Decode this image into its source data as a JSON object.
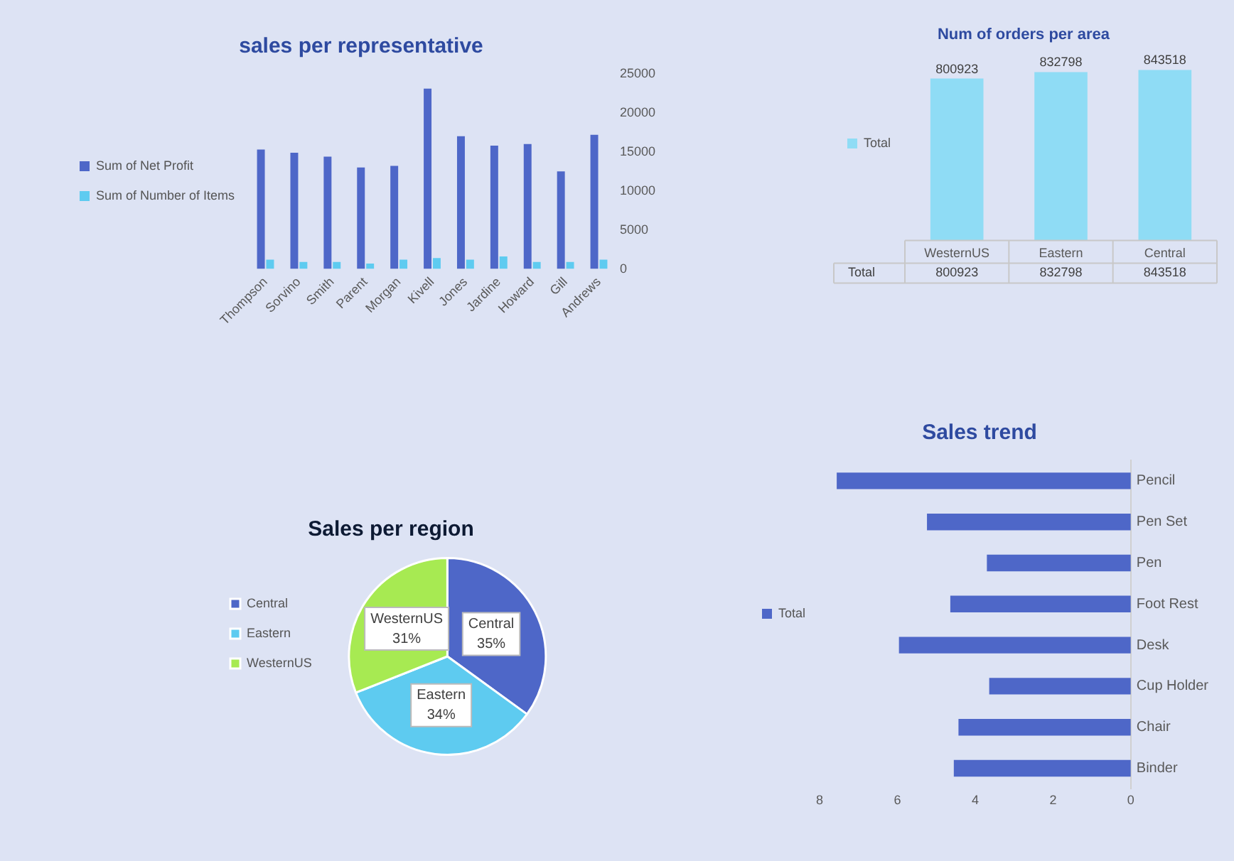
{
  "chart_data": [
    {
      "type": "bar",
      "title": "sales per representative",
      "categories": [
        "Thompson",
        "Sorvino",
        "Smith",
        "Parent",
        "Morgan",
        "Kivell",
        "Jones",
        "Jardine",
        "Howard",
        "Gill",
        "Andrews"
      ],
      "series": [
        {
          "name": "Sum of Net Profit",
          "color": "#4e67c8",
          "values": [
            15300,
            14900,
            14400,
            13000,
            13200,
            23100,
            17000,
            15800,
            16000,
            12500,
            17200
          ]
        },
        {
          "name": "Sum of Number of Items",
          "color": "#5ecbf0",
          "values": [
            1200,
            900,
            900,
            700,
            1200,
            1400,
            1200,
            1600,
            900,
            900,
            1200
          ]
        }
      ],
      "ylim": [
        0,
        25000
      ],
      "yticks": [
        0,
        5000,
        10000,
        15000,
        20000,
        25000
      ],
      "grid": false,
      "legend": "left"
    },
    {
      "type": "bar",
      "title": "Num of orders per area",
      "categories": [
        "WesternUS",
        "Eastern",
        "Central"
      ],
      "series": [
        {
          "name": "Total",
          "color": "#8fdcf5",
          "values": [
            800923,
            832798,
            843518
          ],
          "value_labels": [
            "800923",
            "832798",
            "843518"
          ]
        }
      ],
      "data_labels": true,
      "tick_labels": "x",
      "legend": "left",
      "annotations": [
        "800923",
        "832798",
        "843518"
      ]
    },
    {
      "type": "pie",
      "title": "Sales per region",
      "categories": [
        "Central",
        "Eastern",
        "WesternUS"
      ],
      "values": [
        35,
        34,
        31
      ],
      "colors": [
        "#4e67c8",
        "#5ecbf0",
        "#a7ea52"
      ],
      "value_labels": [
        "35%",
        "34%",
        "31%"
      ],
      "legend": "left"
    },
    {
      "type": "bar",
      "orientation": "horizontal",
      "title": "Sales trend",
      "categories": [
        "Pencil",
        "Pen Set",
        "Pen",
        "Foot Rest",
        "Desk",
        "Cup Holder",
        "Chair",
        "Binder"
      ],
      "series": [
        {
          "name": "Total",
          "color": "#4e67c8",
          "values": [
            7.56,
            5.24,
            3.7,
            4.64,
            5.96,
            3.64,
            4.43,
            4.55
          ]
        }
      ],
      "xlim": [
        8,
        0
      ],
      "xticks": [
        8,
        6,
        4,
        2,
        0
      ],
      "grid": false,
      "legend": "left"
    }
  ]
}
